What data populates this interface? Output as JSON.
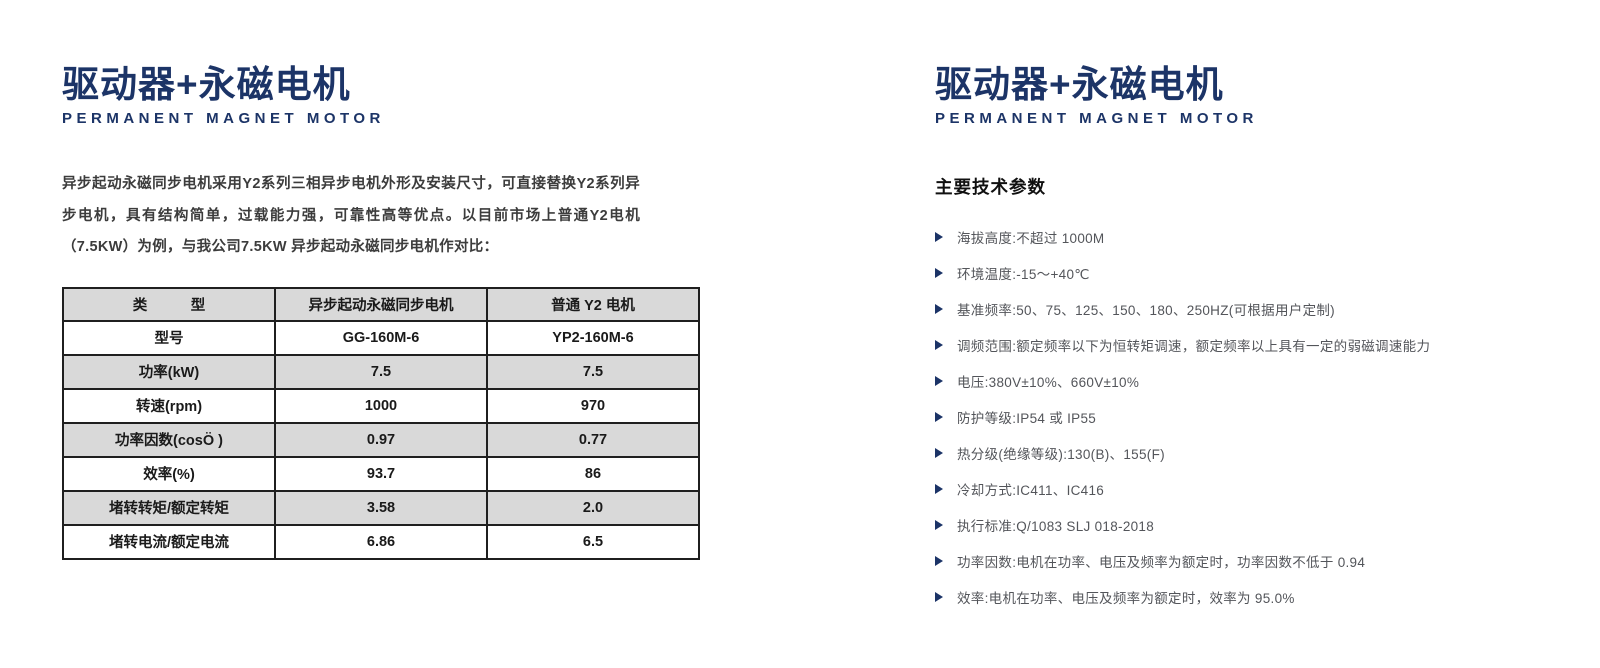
{
  "colors": {
    "brand_blue": "#1c3467",
    "table_gray": "#d9d9d9"
  },
  "left_page": {
    "title": "驱动器+永磁电机",
    "subtitle": "PERMANENT MAGNET MOTOR",
    "intro": "异步起动永磁同步电机采用Y2系列三相异步电机外形及安装尺寸，可直接替换Y2系列异步电机，具有结构简单，过载能力强，可靠性高等优点。以目前市场上普通Y2电机（7.5KW）为例，与我公司7.5KW 异步起动永磁同步电机作对比：",
    "table": {
      "headers": [
        "类　　　型",
        "异步起动永磁同步电机",
        "普通 Y2 电机"
      ],
      "rows": [
        [
          "型号",
          "GG-160M-6",
          "YP2-160M-6"
        ],
        [
          "功率(kW)",
          "7.5",
          "7.5"
        ],
        [
          "转速(rpm)",
          "1000",
          "970"
        ],
        [
          "功率因数(cosÖ )",
          "0.97",
          "0.77"
        ],
        [
          "效率(%)",
          "93.7",
          "86"
        ],
        [
          "堵转转矩/额定转矩",
          "3.58",
          "2.0"
        ],
        [
          "堵转电流/额定电流",
          "6.86",
          "6.5"
        ]
      ]
    }
  },
  "right_page": {
    "title": "驱动器+永磁电机",
    "subtitle": "PERMANENT MAGNET MOTOR",
    "section_heading": "主要技术参数",
    "specs": [
      "海拔高度:不超过 1000M",
      "环境温度:-15～+40℃",
      "基准频率:50、75、125、150、180、250HZ(可根据用户定制)",
      "调频范围:额定频率以下为恒转矩调速，额定频率以上具有一定的弱磁调速能力",
      "电压:380V±10%、660V±10%",
      "防护等级:IP54 或 IP55",
      "热分级(绝缘等级):130(B)、155(F)",
      "冷却方式:IC411、IC416",
      "执行标准:Q/1083 SLJ 018-2018",
      "功率因数:电机在功率、电压及频率为额定时，功率因数不低于 0.94",
      "效率:电机在功率、电压及频率为额定时，效率为 95.0%"
    ]
  }
}
